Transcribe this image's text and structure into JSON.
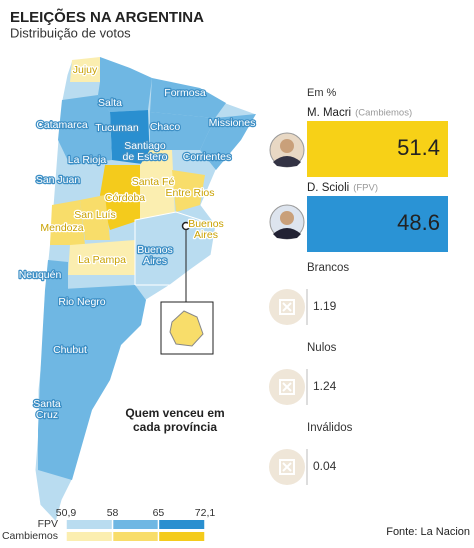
{
  "header": {
    "title": "ELEIÇÕES NA ARGENTINA",
    "subtitle": "Distribuição de votos"
  },
  "map": {
    "annotation": [
      "Quem venceu em",
      "cada província"
    ],
    "provinces": [
      {
        "lines": [
          "Jujuy"
        ],
        "label_color": "#c9a100"
      },
      {
        "lines": [
          "Salta"
        ],
        "label_color": "#ffffff"
      },
      {
        "lines": [
          "Formosa"
        ],
        "label_color": "#ffffff"
      },
      {
        "lines": [
          "Catamarca"
        ],
        "label_color": "#ffffff"
      },
      {
        "lines": [
          "Tucuman"
        ],
        "label_color": "#ffffff"
      },
      {
        "lines": [
          "Chaco"
        ],
        "label_color": "#ffffff"
      },
      {
        "lines": [
          "Missiones"
        ],
        "label_color": "#ffffff"
      },
      {
        "lines": [
          "Santiago",
          "de Estero"
        ],
        "label_color": "#ffffff"
      },
      {
        "lines": [
          "La Rioja"
        ],
        "label_color": "#ffffff"
      },
      {
        "lines": [
          "Corrientes"
        ],
        "label_color": "#ffffff"
      },
      {
        "lines": [
          "San Juan"
        ],
        "label_color": "#ffffff"
      },
      {
        "lines": [
          "Santa Fé"
        ],
        "label_color": "#c9a100"
      },
      {
        "lines": [
          "Córdoba"
        ],
        "label_color": "#c9a100"
      },
      {
        "lines": [
          "Entre Rios"
        ],
        "label_color": "#c9a100"
      },
      {
        "lines": [
          "San Luís"
        ],
        "label_color": "#c9a100"
      },
      {
        "lines": [
          "Buenos",
          "Aires"
        ],
        "label_color": "#c9a100"
      },
      {
        "lines": [
          "Mendoza"
        ],
        "label_color": "#c9a100"
      },
      {
        "lines": [
          "Buenos",
          "Aires"
        ],
        "label_color": "#ffffff"
      },
      {
        "lines": [
          "La Pampa"
        ],
        "label_color": "#c9a100"
      },
      {
        "lines": [
          "Neuquén"
        ],
        "label_color": "#ffffff"
      },
      {
        "lines": [
          "Rio Negro"
        ],
        "label_color": "#ffffff"
      },
      {
        "lines": [
          "Chubut"
        ],
        "label_color": "#ffffff"
      },
      {
        "lines": [
          "Santa",
          "Cruz"
        ],
        "label_color": "#ffffff"
      }
    ]
  },
  "results": {
    "unit": "Em %",
    "candidates": [
      {
        "name": "M. Macri",
        "party": "(Cambiemos)",
        "value": 51.4,
        "color": "#f7d117"
      },
      {
        "name": "D. Scioli",
        "party": "(FPV)",
        "value": 48.6,
        "color": "#2a93d5"
      }
    ],
    "others": [
      {
        "label": "Brancos",
        "value": 1.19
      },
      {
        "label": "Nulos",
        "value": 1.24
      },
      {
        "label": "Inválidos",
        "value": 0.04
      }
    ]
  },
  "legend": {
    "ticks": [
      {
        "value": 50.9,
        "label": "50,9"
      },
      58,
      65,
      {
        "value": 72.1,
        "label": "72,1"
      }
    ],
    "rows": [
      {
        "label": "FPV",
        "colors": [
          "#b9dcf0",
          "#6fb7e3",
          "#2a8fd0"
        ]
      },
      {
        "label": "Cambiemos",
        "colors": [
          "#fbeeb0",
          "#f8dd6a",
          "#f4cb1c"
        ]
      }
    ]
  },
  "source": "Fonte: La Nacion"
}
